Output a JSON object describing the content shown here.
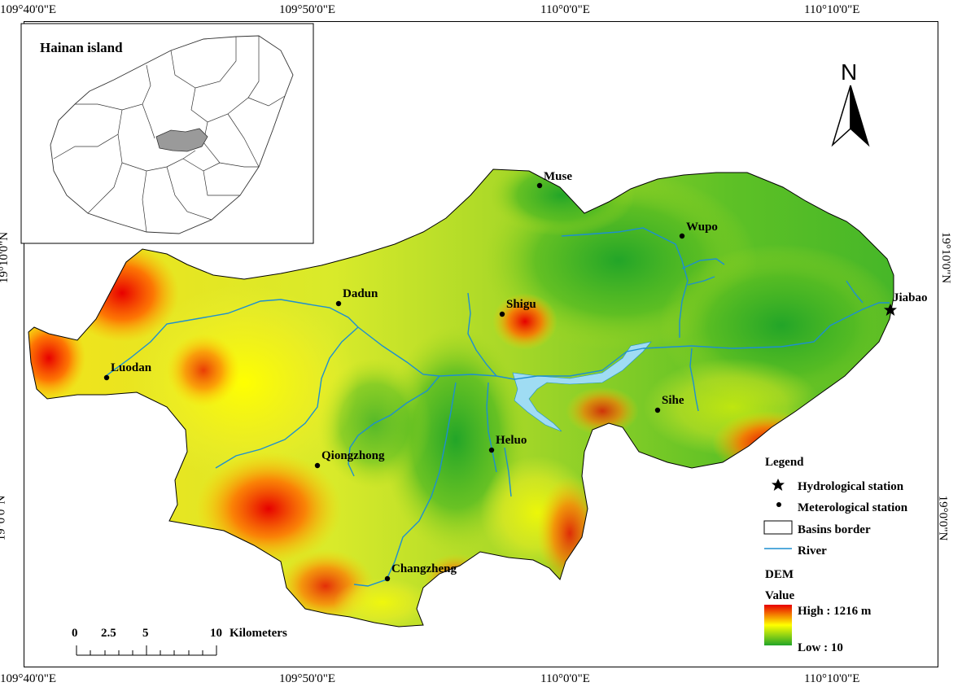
{
  "map": {
    "lon_ticks": [
      "109°40'0\"E",
      "109°50'0\"E",
      "110°0'0\"E",
      "110°10'0\"E"
    ],
    "lat_ticks": [
      "19°10'0\"N",
      "19°0'0\"N"
    ],
    "north_label": "N",
    "inset_title": "Hainan island",
    "stations": [
      {
        "name": "Muse"
      },
      {
        "name": "Wupo"
      },
      {
        "name": "Dadun"
      },
      {
        "name": "Shigu"
      },
      {
        "name": "Jiabao"
      },
      {
        "name": "Luodan"
      },
      {
        "name": "Sihe"
      },
      {
        "name": "Heluo"
      },
      {
        "name": "Qiongzhong"
      },
      {
        "name": "Changzheng"
      }
    ],
    "scale": {
      "ticks": [
        "0",
        "2.5",
        "5",
        "10"
      ],
      "unit": "Kilometers"
    }
  },
  "legend": {
    "title": "Legend",
    "items": [
      {
        "label": "Hydrological station",
        "icon": "star-icon"
      },
      {
        "label": "Meterological station",
        "icon": "dot-icon"
      },
      {
        "label": "Basins border",
        "icon": "rectangle-icon"
      },
      {
        "label": "River",
        "icon": "line-icon"
      }
    ],
    "dem_title": "DEM",
    "value_title": "Value",
    "high": "High : 1216 m",
    "low": "Low : 10"
  },
  "colors": {
    "high": "#e80000",
    "mid": "#ffff00",
    "low": "#22a528",
    "river": "#1d8fd0",
    "lake": "#9fdcf3",
    "inset_highlight": "#9a9a9a"
  }
}
